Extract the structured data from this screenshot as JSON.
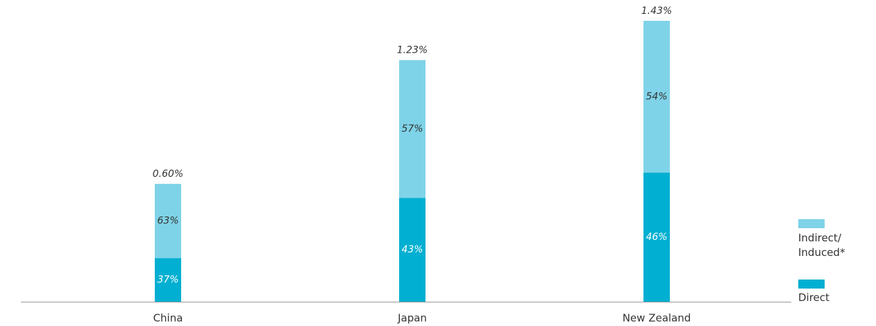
{
  "chart_data": {
    "type": "stacked_bar",
    "categories": [
      "China",
      "Japan",
      "New Zealand"
    ],
    "totals": {
      "values": [
        0.6,
        1.23,
        1.43
      ],
      "value_labels": [
        "0.60%",
        "1.23%",
        "1.43%"
      ]
    },
    "series": [
      {
        "name": "Direct",
        "color": "#00afd1",
        "values": [
          37,
          43,
          46
        ],
        "value_labels": [
          "37%",
          "43%",
          "46%"
        ]
      },
      {
        "name": "Indirect/ Induced*",
        "color": "#7fd3e8",
        "values": [
          63,
          57,
          54
        ],
        "value_labels": [
          "63%",
          "57%",
          "54%"
        ]
      }
    ]
  }
}
